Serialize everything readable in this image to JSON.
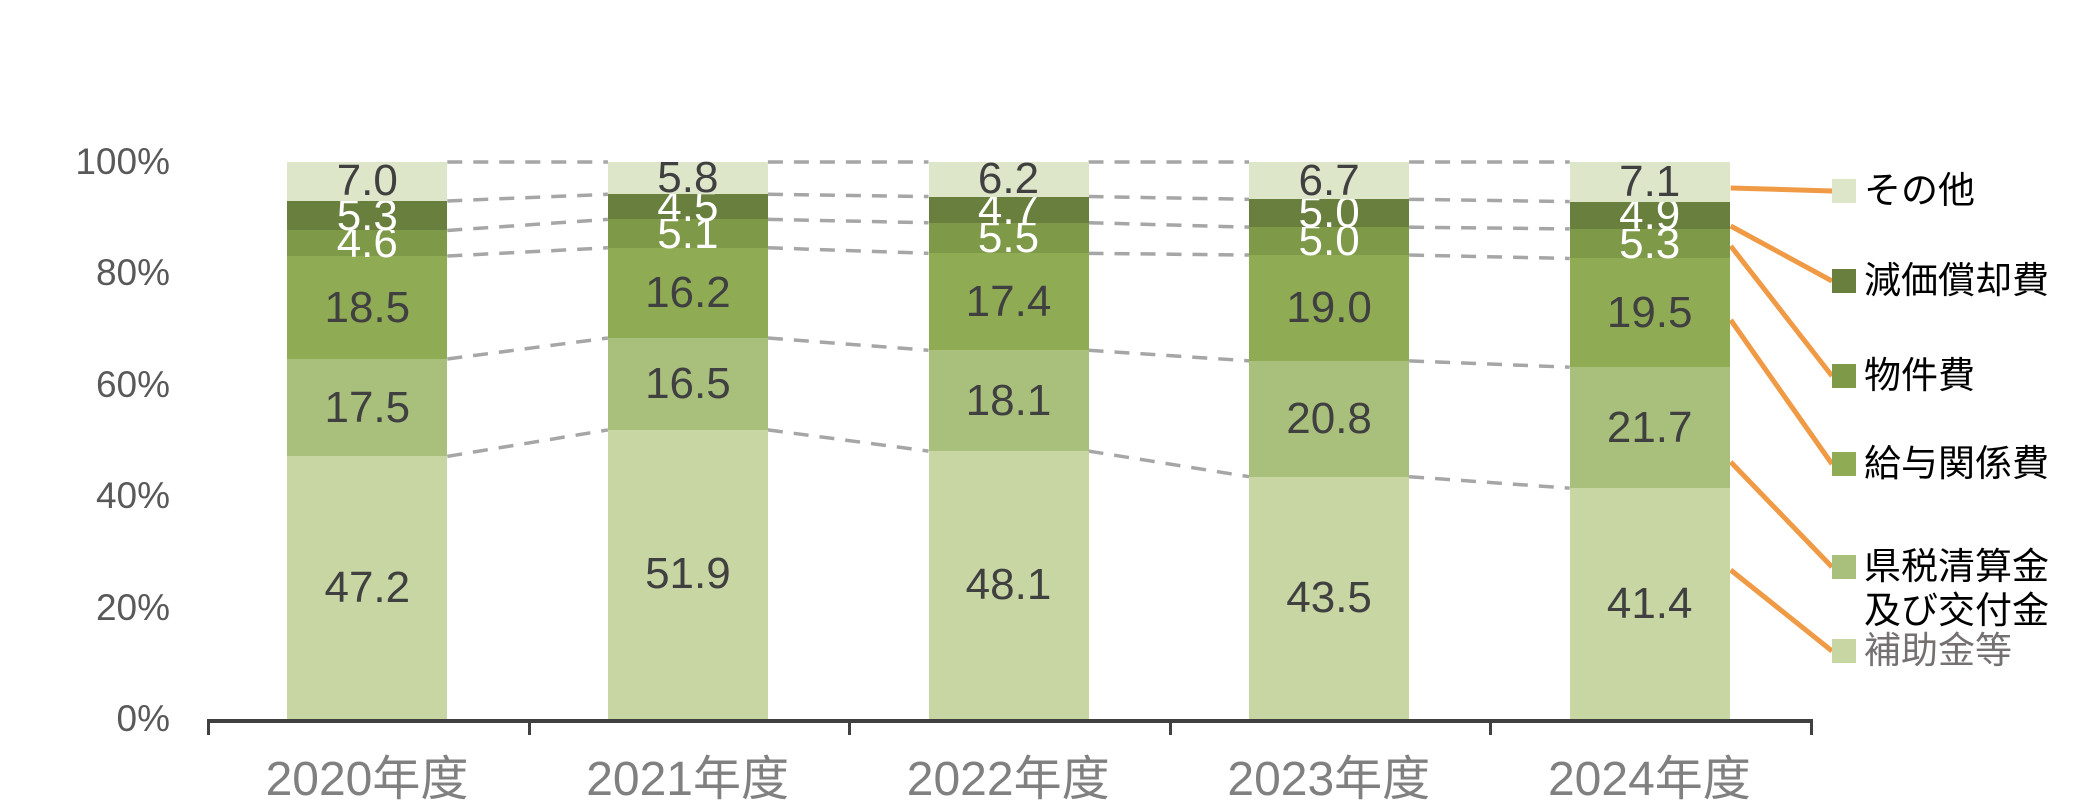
{
  "chart_data": {
    "type": "bar",
    "variant": "100-percent-stacked-column",
    "title": "",
    "categories": [
      "2020年度",
      "2021年度",
      "2022年度",
      "2023年度",
      "2024年度"
    ],
    "series": [
      {
        "name": "補助金等",
        "values": [
          47.2,
          51.9,
          48.1,
          43.5,
          41.4
        ],
        "color": "#c7d6a3",
        "label_color": "#404040"
      },
      {
        "name": "県税清算金及び交付金",
        "values": [
          17.5,
          16.5,
          18.1,
          20.8,
          21.7
        ],
        "color": "#a9c07c",
        "label_color": "#404040"
      },
      {
        "name": "給与関係費",
        "values": [
          18.5,
          16.2,
          17.4,
          19.0,
          19.5
        ],
        "color": "#8fac55",
        "label_color": "#404040"
      },
      {
        "name": "物件費",
        "values": [
          4.6,
          5.1,
          5.5,
          5.0,
          5.3
        ],
        "color": "#7e9a49",
        "label_color": "#ffffff"
      },
      {
        "name": "減価償却費",
        "values": [
          5.3,
          4.5,
          4.7,
          5.0,
          4.9
        ],
        "color": "#697f3e",
        "label_color": "#ffffff"
      },
      {
        "name": "その他",
        "values": [
          7.0,
          5.8,
          6.2,
          6.7,
          7.1
        ],
        "color": "#dde6c9",
        "label_color": "#404040"
      }
    ],
    "value_label_decimals": 1,
    "y_axis": {
      "min": 0,
      "max": 100,
      "ticks": [
        "0%",
        "20%",
        "40%",
        "60%",
        "80%",
        "100%"
      ],
      "gridlines": false
    },
    "connectors": "dashed lines join segment boundaries between adjacent bars",
    "legend": {
      "position": "right",
      "items_top_to_bottom": [
        {
          "series": "その他",
          "lines": [
            "その他"
          ],
          "text_color": "#000000"
        },
        {
          "series": "減価償却費",
          "lines": [
            "減価償却費"
          ],
          "text_color": "#000000"
        },
        {
          "series": "物件費",
          "lines": [
            "物件費"
          ],
          "text_color": "#000000"
        },
        {
          "series": "給与関係費",
          "lines": [
            "給与関係費"
          ],
          "text_color": "#000000"
        },
        {
          "series": "県税清算金及び交付金",
          "lines": [
            "県税清算金",
            "及び交付金"
          ],
          "text_color": "#000000"
        },
        {
          "series": "補助金等",
          "lines": [
            "補助金等"
          ],
          "text_color": "#767171"
        }
      ]
    },
    "colors": {
      "axis_line": "#404040",
      "y_tick_text": "#595959",
      "x_tick_text": "#808080",
      "dashed_connector": "#a6a6a6",
      "leader_line": "#f09a45"
    }
  }
}
